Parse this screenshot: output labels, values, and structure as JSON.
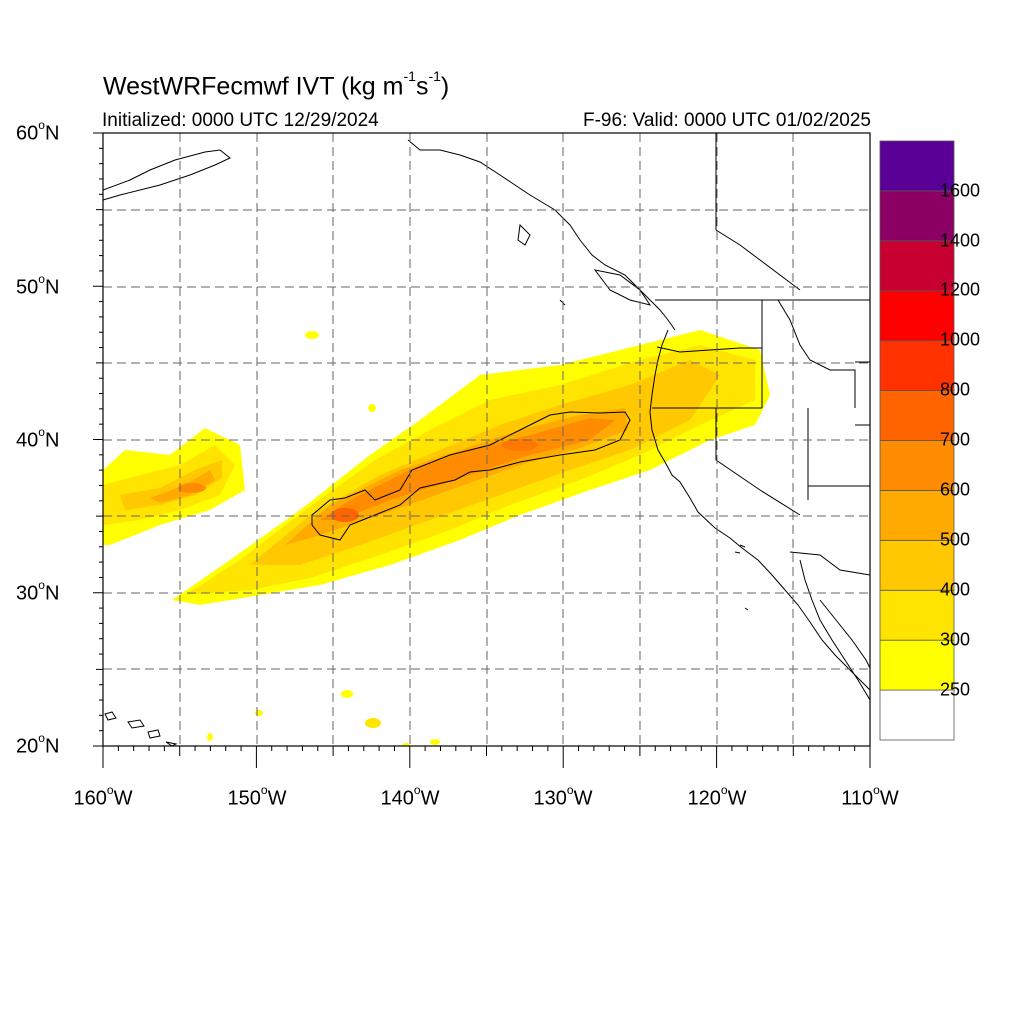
{
  "title": {
    "model": "WestWRFecmwf IVT",
    "unit_open": "(kg m",
    "exp1": "-1",
    "unit_mid": "s",
    "exp2": "-1",
    "unit_close": ")"
  },
  "initialized": "Initialized: 0000 UTC 12/29/2024",
  "valid": "F-96: Valid: 0000 UTC 01/02/2025",
  "lat_labels": [
    {
      "num": "60",
      "deg": "o",
      "hem": "N"
    },
    {
      "num": "50",
      "deg": "o",
      "hem": "N"
    },
    {
      "num": "40",
      "deg": "o",
      "hem": "N"
    },
    {
      "num": "30",
      "deg": "o",
      "hem": "N"
    },
    {
      "num": "20",
      "deg": "o",
      "hem": "N"
    }
  ],
  "lon_labels": [
    {
      "num": "160",
      "deg": "o",
      "hem": "W"
    },
    {
      "num": "150",
      "deg": "o",
      "hem": "W"
    },
    {
      "num": "140",
      "deg": "o",
      "hem": "W"
    },
    {
      "num": "130",
      "deg": "o",
      "hem": "W"
    },
    {
      "num": "120",
      "deg": "o",
      "hem": "W"
    },
    {
      "num": "110",
      "deg": "o",
      "hem": "W"
    }
  ],
  "colorbar": {
    "labels": [
      "250",
      "300",
      "400",
      "500",
      "600",
      "700",
      "800",
      "1000",
      "1200",
      "1400",
      "1600"
    ],
    "colors": [
      "#ffffff",
      "#ffff00",
      "#ffe400",
      "#ffc800",
      "#ffaa00",
      "#ff8c00",
      "#ff6400",
      "#ff3200",
      "#ff0000",
      "#c80032",
      "#8c0064",
      "#5a0096"
    ]
  },
  "map_extent": {
    "lon_min": -160,
    "lon_max": -110,
    "lat_min": 20,
    "lat_max": 60
  },
  "grid": "dashed every 5 degrees",
  "contour_highlight": "600"
}
